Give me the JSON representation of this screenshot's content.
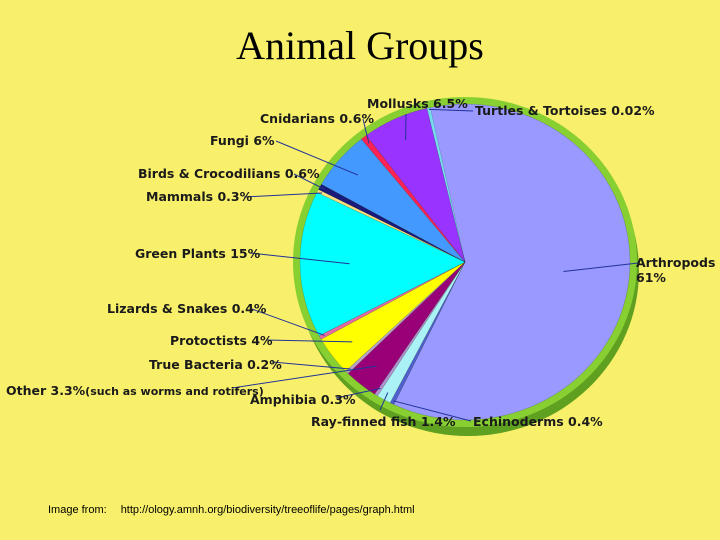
{
  "title": "Animal Groups",
  "credit": {
    "prefix": "Image from:",
    "url": "http://ology.amnh.org/biodiversity/treeoflife/pages/graph.html"
  },
  "chart_data": {
    "type": "pie",
    "title": "Animal Groups",
    "units": "%",
    "slices": [
      {
        "label": "Arthropods",
        "value_text": "61%",
        "value": 61,
        "color": "#9999ff"
      },
      {
        "label": "Echinoderms",
        "value_text": "0.4%",
        "value": 0.4,
        "color": "#4f5fcf"
      },
      {
        "label": "Ray-finned fish",
        "value_text": "1.4%",
        "value": 1.4,
        "color": "#aaf2f6"
      },
      {
        "label": "Amphibia",
        "value_text": "0.3%",
        "value": 0.3,
        "color": "#b090d0"
      },
      {
        "label": "Other",
        "value_text": "3.3%",
        "note": "(such as worms and rotifers)",
        "value": 3.3,
        "color": "#990077"
      },
      {
        "label": "True Bacteria",
        "value_text": "0.2%",
        "value": 0.2,
        "color": "#b8a0c8"
      },
      {
        "label": "Protoctists",
        "value_text": "4%",
        "value": 4,
        "color": "#ffff00"
      },
      {
        "label": "Lizards & Snakes",
        "value_text": "0.4%",
        "value": 0.4,
        "color": "#e36aa8"
      },
      {
        "label": "Green Plants",
        "value_text": "15%",
        "value": 15,
        "color": "#00ffff"
      },
      {
        "label": "Mammals",
        "value_text": "0.3%",
        "value": 0.3,
        "color": "#ffe080"
      },
      {
        "label": "Birds & Crocodilians",
        "value_text": "0.6%",
        "value": 0.6,
        "color": "#1a1a7a"
      },
      {
        "label": "Fungi",
        "value_text": "6%",
        "value": 6,
        "color": "#4499ff"
      },
      {
        "label": "Cnidarians",
        "value_text": "0.6%",
        "value": 0.6,
        "color": "#ff2255"
      },
      {
        "label": "Mollusks",
        "value_text": "6.5%",
        "value": 6.5,
        "color": "#9933ff"
      },
      {
        "label": "Turtles & Tortoises",
        "value_text": "0.02%",
        "value": 0.02,
        "color": "#77ddee"
      }
    ]
  }
}
